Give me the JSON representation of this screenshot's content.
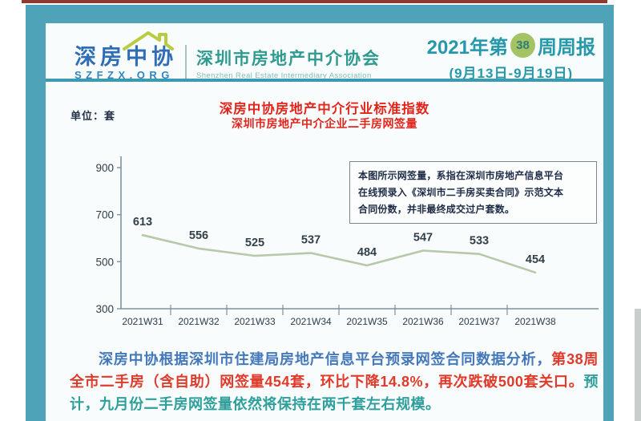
{
  "header": {
    "logo_cn": "深房中协",
    "logo_domain": "SZFZX.ORG",
    "org_name_cn": "深圳市房地产中介协会",
    "org_name_en": "Shenzhen Real Estate Intermediary Association",
    "report_title_prefix": "2021年第",
    "report_week_badge": "38",
    "report_title_suffix": "周周报",
    "report_date_range": "(9月13日-9月19日)"
  },
  "chart": {
    "unit_label": "单位：套",
    "title": "深房中协房地产中介行业标准指数",
    "subtitle": "深圳市房地产中介企业二手房网签量",
    "note_lines": [
      "本图所示网签量，系指在深圳市房地产信息平台",
      "在线预录入《深圳市二手房买卖合同》示范文本",
      "合同份数，并非最终成交过户套数。"
    ]
  },
  "chart_data": {
    "type": "line",
    "title": "深房中协房地产中介行业标准指数",
    "subtitle": "深圳市房地产中介企业二手房网签量",
    "ylabel": "套",
    "categories": [
      "2021W31",
      "2021W32",
      "2021W33",
      "2021W34",
      "2021W35",
      "2021W36",
      "2021W37",
      "2021W38"
    ],
    "values": [
      613,
      556,
      525,
      537,
      484,
      547,
      533,
      454
    ],
    "yticks": [
      300,
      500,
      700,
      900
    ],
    "ylim": [
      300,
      950
    ],
    "grid": false,
    "legend_position": "none",
    "line_color": "#b7c9a8",
    "axis_color": "#7d929c",
    "label_color": "#2e3d49"
  },
  "summary": {
    "segment_blue": "深房中协根据深圳市住建局房地产信息平台预录网签合同数据分析，",
    "segment_red": "第38周全市二手房（含自助）网签量454套，环比下降14.8%，再次跌破500套关口。",
    "segment_teal": "预计，九月份二手房网签量依然将保持在两千套左右规模。"
  },
  "colors": {
    "frame_teal": "#4ea3b8",
    "title_red": "#e1251b",
    "badge_green": "#a4c364",
    "logo_blue": "#2f6eb4",
    "org_teal": "#2f9a8f"
  }
}
